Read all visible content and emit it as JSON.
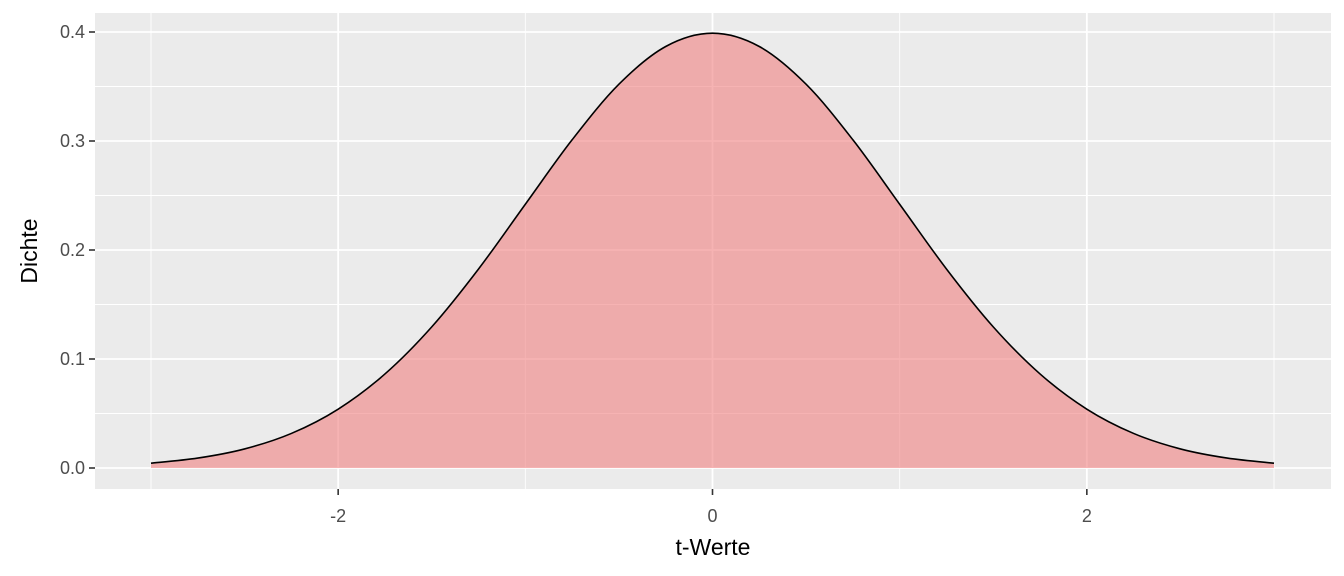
{
  "chart_data": {
    "type": "area",
    "title": "",
    "xlabel": "t-Werte",
    "ylabel": "Dichte",
    "xlim": [
      -3,
      3
    ],
    "ylim": [
      0,
      0.4
    ],
    "x_ticks": [
      -2,
      0,
      2
    ],
    "x_tick_labels": [
      "-2",
      "0",
      "2"
    ],
    "y_ticks": [
      0.0,
      0.1,
      0.2,
      0.3,
      0.4
    ],
    "y_tick_labels": [
      "0.0",
      "0.1",
      "0.2",
      "0.3",
      "0.4"
    ],
    "grid": true,
    "legend": "none",
    "colors": {
      "panel_background": "#ebebeb",
      "grid_major": "#ffffff",
      "fill": "#f08080",
      "fill_opacity": 0.6,
      "line": "#000000"
    },
    "series": [
      {
        "x": [
          -3.0,
          -2.75,
          -2.5,
          -2.25,
          -2.0,
          -1.75,
          -1.5,
          -1.25,
          -1.0,
          -0.75,
          -0.5,
          -0.25,
          0.0,
          0.25,
          0.5,
          0.75,
          1.0,
          1.25,
          1.5,
          1.75,
          2.0,
          2.25,
          2.5,
          2.75,
          3.0
        ],
        "y": [
          0.0044,
          0.0091,
          0.0175,
          0.0317,
          0.054,
          0.0863,
          0.1295,
          0.1826,
          0.242,
          0.3011,
          0.3521,
          0.3867,
          0.3989,
          0.3867,
          0.3521,
          0.3011,
          0.242,
          0.1826,
          0.1295,
          0.0863,
          0.054,
          0.0317,
          0.0175,
          0.0091,
          0.0044
        ]
      }
    ]
  }
}
